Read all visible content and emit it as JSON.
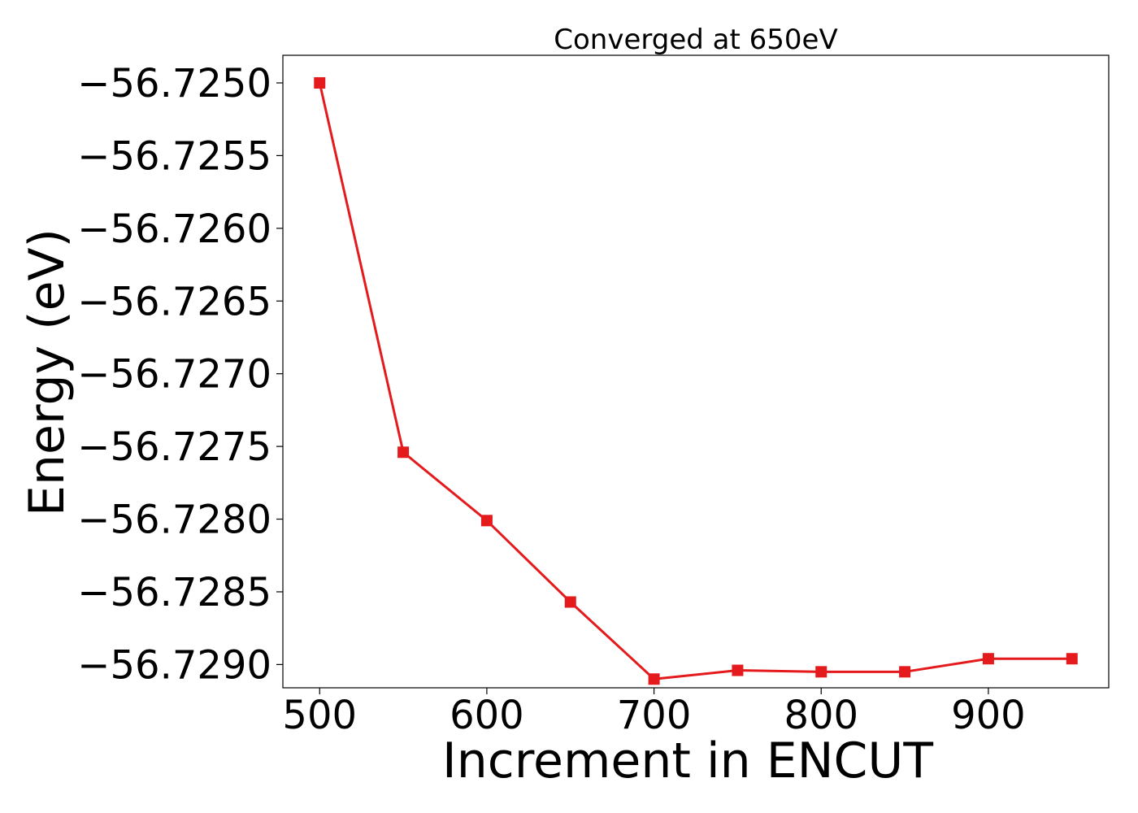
{
  "chart_data": {
    "type": "line",
    "title": "Converged at 650eV",
    "xlabel": "Increment in ENCUT",
    "ylabel": "Energy (eV)",
    "x": [
      500,
      550,
      600,
      650,
      700,
      750,
      800,
      850,
      900,
      950
    ],
    "series": [
      {
        "values": [
          -56.725,
          -56.72754,
          -56.72801,
          -56.72857,
          -56.7291,
          -56.72904,
          -56.72905,
          -56.72905,
          -56.72896,
          -56.72896
        ],
        "color": "#e41a1c",
        "marker": "square"
      }
    ],
    "xlim": [
      478,
      972
    ],
    "ylim": [
      -56.72916,
      -56.72481
    ],
    "xticks": [
      500,
      600,
      700,
      800,
      900
    ],
    "xtick_labels": [
      "500",
      "600",
      "700",
      "800",
      "900"
    ],
    "yticks": [
      -56.725,
      -56.7255,
      -56.726,
      -56.7265,
      -56.727,
      -56.7275,
      -56.728,
      -56.7285,
      -56.729
    ],
    "ytick_labels": [
      "−56.7250",
      "−56.7255",
      "−56.7260",
      "−56.7265",
      "−56.7270",
      "−56.7275",
      "−56.7280",
      "−56.7285",
      "−56.7290"
    ],
    "grid": false,
    "legend": "none"
  }
}
